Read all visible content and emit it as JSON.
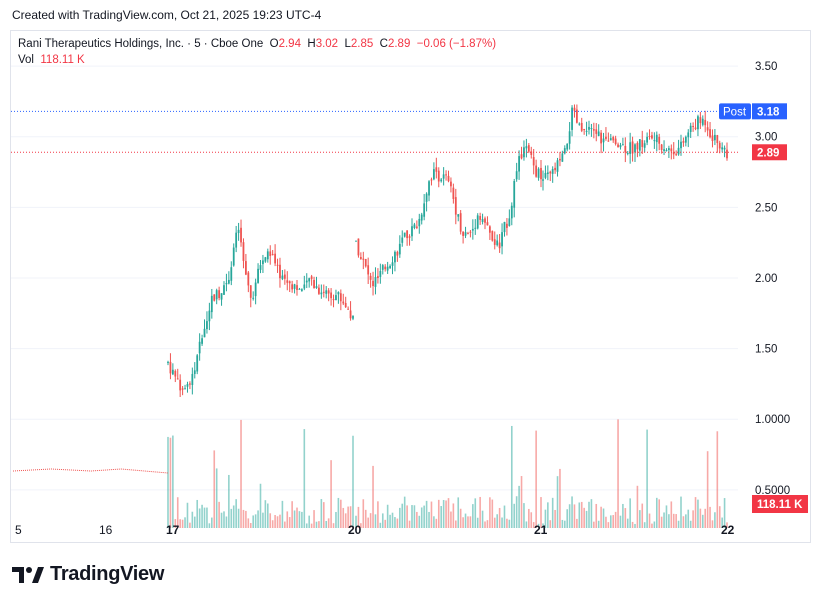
{
  "header": {
    "created": "Created with TradingView.com, Oct 21, 2025 19:23 UTC-4"
  },
  "legend": {
    "symbol": "Rani Therapeutics Holdings, Inc. · 5 · Cboe One",
    "o_label": "O",
    "o_value": "2.94",
    "h_label": "H",
    "h_value": "3.02",
    "l_label": "L",
    "l_value": "2.85",
    "c_label": "C",
    "c_value": "2.89",
    "change": "−0.06 (−1.87%)",
    "vol_label": "Vol",
    "vol_value": "118.11 K"
  },
  "footer": {
    "brand": "TradingView"
  },
  "colors": {
    "up": "#26a69a",
    "down": "#ef5350",
    "post_line": "#2962ff",
    "last_line": "#f23645",
    "grid": "#f0f3fa"
  },
  "chart_data": {
    "type": "candlestick",
    "price_axis": {
      "ticks": [
        "3.50",
        "3.00",
        "2.50",
        "2.00",
        "1.50",
        "1.0000",
        "0.5000"
      ],
      "ylim": [
        0,
        3.6
      ]
    },
    "x_tick_labels": [
      "5",
      "16",
      "17",
      "20",
      "21",
      "22"
    ],
    "price_labels": [
      {
        "text": "3.18",
        "tag": "Post",
        "value": 3.18
      },
      {
        "text": "2.89",
        "value": 2.89
      },
      {
        "text": "118.11 K"
      }
    ],
    "sessions": [
      {
        "label": "17",
        "points": [
          [
            0,
            1.4
          ],
          [
            3,
            1.3
          ],
          [
            6,
            1.2
          ],
          [
            9,
            1.25
          ],
          [
            12,
            1.32
          ],
          [
            16,
            1.6
          ],
          [
            20,
            1.85
          ],
          [
            24,
            1.9
          ],
          [
            28,
            2.0
          ],
          [
            31,
            2.25
          ],
          [
            33,
            2.35
          ],
          [
            36,
            2.0
          ],
          [
            39,
            1.85
          ],
          [
            43,
            2.1
          ],
          [
            47,
            2.2
          ],
          [
            51,
            2.05
          ],
          [
            55,
            1.98
          ],
          [
            59,
            1.95
          ],
          [
            63,
            1.9
          ],
          [
            66,
            2.0
          ],
          [
            70,
            1.92
          ],
          [
            74,
            1.9
          ],
          [
            79,
            1.88
          ],
          [
            83,
            1.8
          ],
          [
            86,
            1.7
          ]
        ]
      },
      {
        "label": "20",
        "points": [
          [
            0,
            2.25
          ],
          [
            3,
            2.15
          ],
          [
            6,
            2.05
          ],
          [
            9,
            1.95
          ],
          [
            13,
            2.0
          ],
          [
            17,
            2.08
          ],
          [
            21,
            2.15
          ],
          [
            25,
            2.22
          ],
          [
            29,
            2.3
          ],
          [
            33,
            2.35
          ],
          [
            36,
            2.4
          ],
          [
            39,
            2.55
          ],
          [
            42,
            2.7
          ],
          [
            45,
            2.75
          ],
          [
            48,
            2.72
          ],
          [
            52,
            2.7
          ],
          [
            55,
            2.6
          ],
          [
            58,
            2.45
          ],
          [
            61,
            2.32
          ],
          [
            64,
            2.3
          ],
          [
            67,
            2.35
          ],
          [
            70,
            2.45
          ],
          [
            73,
            2.42
          ],
          [
            76,
            2.32
          ],
          [
            79,
            2.25
          ],
          [
            82,
            2.22
          ],
          [
            85,
            2.35
          ],
          [
            88,
            2.45
          ],
          [
            91,
            2.7
          ],
          [
            94,
            2.85
          ],
          [
            97,
            2.92
          ],
          [
            100,
            2.85
          ],
          [
            103,
            2.75
          ],
          [
            106,
            2.72
          ]
        ]
      },
      {
        "label": "21",
        "points": [
          [
            0,
            2.7
          ],
          [
            3,
            2.72
          ],
          [
            6,
            2.8
          ],
          [
            9,
            2.88
          ],
          [
            12,
            3.18
          ],
          [
            15,
            3.05
          ],
          [
            18,
            3.02
          ],
          [
            21,
            3.05
          ],
          [
            24,
            2.98
          ],
          [
            27,
            2.95
          ],
          [
            30,
            2.98
          ],
          [
            33,
            2.93
          ],
          [
            36,
            2.92
          ],
          [
            40,
            2.95
          ],
          [
            44,
            3.0
          ],
          [
            48,
            2.95
          ],
          [
            52,
            2.9
          ],
          [
            56,
            2.92
          ],
          [
            60,
            3.05
          ],
          [
            63,
            3.1
          ],
          [
            66,
            3.12
          ],
          [
            69,
            3.0
          ],
          [
            72,
            2.95
          ],
          [
            75,
            2.89
          ]
        ]
      }
    ]
  }
}
